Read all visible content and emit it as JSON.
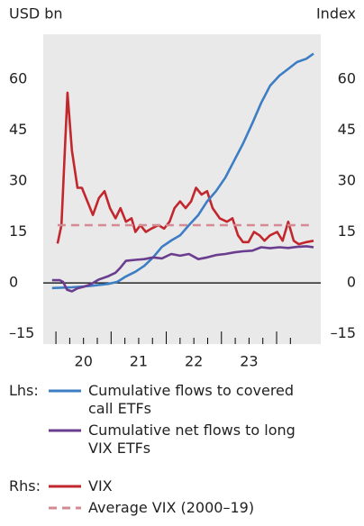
{
  "chart_data": {
    "type": "line",
    "ylabel": "USD bn",
    "y2label": "Index",
    "xlim": [
      2019.77,
      2024.8
    ],
    "xticks": [
      {
        "value": 2020.5,
        "label": "20"
      },
      {
        "value": 2021.5,
        "label": "21"
      },
      {
        "value": 2022.5,
        "label": "22"
      },
      {
        "value": 2023.5,
        "label": "23"
      }
    ],
    "ylim": [
      -18,
      73.2
    ],
    "yticks": [
      {
        "value": -15,
        "label": "–15"
      },
      0,
      15,
      30,
      45,
      60
    ],
    "y2lim": [
      -18,
      73.2
    ],
    "y2ticks": [
      {
        "value": -15,
        "label": "–15"
      },
      0,
      15,
      30,
      45,
      60
    ],
    "lhs_label": "Lhs:",
    "rhs_label": "Rhs:",
    "series": [
      {
        "name": "Cumulative flows to covered call ETFs",
        "color": "#3c7dc4",
        "axis": "y",
        "x": [
          2019.93,
          2020.29,
          2020.62,
          2020.95,
          2021.11,
          2021.27,
          2021.44,
          2021.6,
          2021.76,
          2021.92,
          2022.09,
          2022.25,
          2022.41,
          2022.58,
          2022.74,
          2022.9,
          2023.07,
          2023.23,
          2023.39,
          2023.56,
          2023.72,
          2023.88,
          2024.05,
          2024.21,
          2024.37,
          2024.54,
          2024.67
        ],
        "values": [
          -1.5,
          -1.3,
          -0.9,
          -0.3,
          0.3,
          1.9,
          3.3,
          5,
          7.5,
          10.6,
          12.5,
          14,
          17,
          20,
          24,
          27,
          31,
          36,
          41,
          47,
          53,
          58,
          61,
          63,
          65,
          66,
          67.5
        ]
      },
      {
        "name": "Cumulative net flows to long VIX ETFs",
        "color": "#6a3d8f",
        "axis": "y",
        "x": [
          2019.93,
          2020.07,
          2020.13,
          2020.2,
          2020.29,
          2020.39,
          2020.49,
          2020.62,
          2020.78,
          2020.95,
          2021.08,
          2021.17,
          2021.27,
          2021.44,
          2021.6,
          2021.76,
          2021.92,
          2022.09,
          2022.25,
          2022.41,
          2022.58,
          2022.74,
          2022.9,
          2023.07,
          2023.23,
          2023.39,
          2023.56,
          2023.72,
          2023.88,
          2024.05,
          2024.21,
          2024.37,
          2024.54,
          2024.67
        ],
        "values": [
          0.8,
          0.8,
          0.3,
          -2,
          -2.5,
          -1.6,
          -1.2,
          -0.5,
          1,
          2,
          3,
          4.5,
          6.5,
          6.8,
          7,
          7.5,
          7.2,
          8.5,
          8,
          8.5,
          7,
          7.5,
          8.2,
          8.5,
          9,
          9.3,
          9.5,
          10.5,
          10.2,
          10.5,
          10.3,
          10.6,
          10.8,
          10.5
        ]
      },
      {
        "name": "VIX",
        "color": "#c1272d",
        "axis": "y2",
        "x": [
          2020.03,
          2020.1,
          2020.21,
          2020.29,
          2020.39,
          2020.47,
          2020.57,
          2020.67,
          2020.78,
          2020.88,
          2020.98,
          2021.08,
          2021.17,
          2021.27,
          2021.37,
          2021.44,
          2021.53,
          2021.63,
          2021.73,
          2021.86,
          2021.96,
          2022.06,
          2022.15,
          2022.25,
          2022.35,
          2022.45,
          2022.54,
          2022.64,
          2022.74,
          2022.84,
          2022.97,
          2023.1,
          2023.2,
          2023.3,
          2023.39,
          2023.49,
          2023.59,
          2023.69,
          2023.78,
          2023.88,
          2024.01,
          2024.11,
          2024.21,
          2024.31,
          2024.4,
          2024.54,
          2024.67
        ],
        "values": [
          11.6,
          17,
          56,
          39,
          28,
          28,
          24,
          20,
          25,
          27,
          22,
          19,
          22,
          18,
          19,
          15,
          17,
          15,
          16,
          17,
          16,
          18,
          22,
          24,
          22,
          24,
          28,
          26,
          27,
          22,
          19,
          18,
          19,
          14,
          12,
          12,
          15,
          14,
          12.4,
          14,
          15,
          12.4,
          18,
          12.4,
          11.4,
          12,
          12.4
        ]
      },
      {
        "name": "Average VIX (2000–19)",
        "color": "#d58a93",
        "axis": "y2",
        "dash": true,
        "x": [
          2020.03,
          2024.67
        ],
        "values": [
          17,
          17
        ]
      }
    ]
  }
}
